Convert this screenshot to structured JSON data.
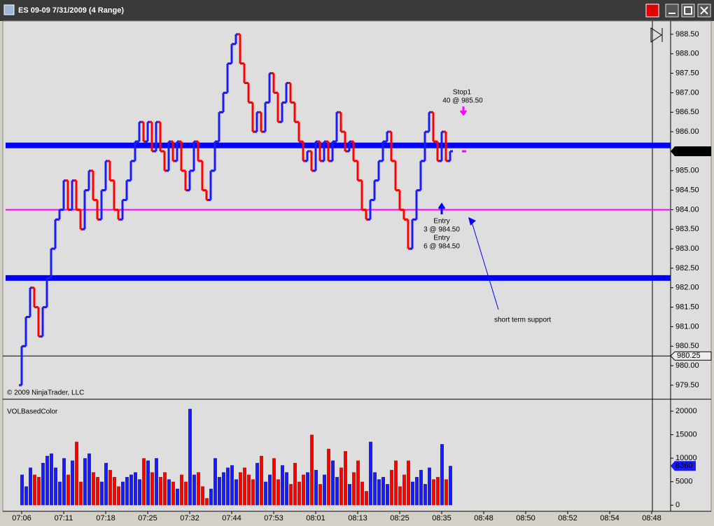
{
  "window": {
    "title": "ES 09-09  7/31/2009 (4 Range)"
  },
  "chart_data": {
    "type": "range-bar",
    "open": 979.5,
    "up_color": "#1a1aff",
    "down_color": "#ff0000",
    "values": [
      980.5,
      981.25,
      982,
      981.5,
      980.75,
      981.5,
      982.25,
      983,
      983.75,
      984,
      984.75,
      984,
      984.75,
      984,
      983.5,
      984.5,
      985,
      984.25,
      983.75,
      984.5,
      985.25,
      984.75,
      984,
      983.75,
      984.25,
      984.75,
      985.25,
      985.75,
      986.25,
      985.75,
      986.25,
      985.5,
      986.25,
      985.5,
      985,
      985.75,
      985.25,
      985.75,
      985,
      984.5,
      985,
      985.75,
      985.25,
      984.5,
      984.25,
      985,
      985.75,
      986.5,
      987,
      987.75,
      988.25,
      988.5,
      987.75,
      987.25,
      986.75,
      986,
      986.5,
      986,
      986.75,
      987.5,
      987,
      986.25,
      986.75,
      987.25,
      986.75,
      986.25,
      985.75,
      985.25,
      985.5,
      985,
      985.75,
      985.25,
      985.75,
      985.25,
      985.75,
      986.5,
      986,
      985.5,
      985.75,
      985.25,
      984.75,
      984,
      983.75,
      984.25,
      984.75,
      985.25,
      985.75,
      986,
      985.25,
      984.5,
      984,
      983.75,
      983,
      983.75,
      984.5,
      985.25,
      986,
      986.5,
      985.75,
      985.25,
      986,
      985.25,
      985.5
    ],
    "ylim": [
      979.14,
      988.84
    ],
    "yticks": [
      {
        "value": 979.5,
        "label": "979.50"
      },
      {
        "value": 980,
        "label": "980.00"
      },
      {
        "value": 980.5,
        "label": "980.50"
      },
      {
        "value": 981,
        "label": "981.00"
      },
      {
        "value": 981.5,
        "label": "981.50"
      },
      {
        "value": 982,
        "label": "982.00"
      },
      {
        "value": 982.5,
        "label": "982.50"
      },
      {
        "value": 983,
        "label": "983.00"
      },
      {
        "value": 983.5,
        "label": "983.50"
      },
      {
        "value": 984,
        "label": "984.00"
      },
      {
        "value": 984.5,
        "label": "984.50"
      },
      {
        "value": 985,
        "label": "985.00"
      },
      {
        "value": 985.5,
        "label": "985.50"
      },
      {
        "value": 986,
        "label": "986.00"
      },
      {
        "value": 986.5,
        "label": "986.50"
      },
      {
        "value": 987,
        "label": "987.00"
      },
      {
        "value": 987.5,
        "label": "987.50"
      },
      {
        "value": 988,
        "label": "988.00"
      },
      {
        "value": 988.5,
        "label": "988.50"
      }
    ],
    "time_labels": [
      "07:06",
      "07:11",
      "07:18",
      "07:25",
      "07:32",
      "07:44",
      "07:53",
      "08:01",
      "08:13",
      "08:25",
      "08:35",
      "08:48",
      "08:50",
      "08:52",
      "08:54",
      "08:48"
    ],
    "hlines": [
      {
        "value": 985.65,
        "color": "#0000ff"
      },
      {
        "value": 982.25,
        "color": "#0000ff"
      },
      {
        "value": 984,
        "color": "#ff00ff"
      }
    ],
    "price_tag": {
      "value": 985.5,
      "label": "985.50"
    },
    "cursor_line": {
      "value": 980.25,
      "label": "980.25"
    },
    "annotations": {
      "stop": "Stop1",
      "stop_order": "40 @ 985.50",
      "entry1": "Entry",
      "entry1_order": "3 @ 984.50",
      "entry2": "Entry",
      "entry2_order": "6 @ 984.50",
      "note": "short term support"
    },
    "copyright": "© 2009 NinjaTrader, LLC",
    "volume": {
      "title": "VOLBasedColor",
      "values": [
        6500,
        4000,
        8000,
        6500,
        6000,
        9000,
        10500,
        11000,
        8000,
        5000,
        10000,
        6500,
        9500,
        13500,
        5000,
        10000,
        11000,
        7000,
        6000,
        5000,
        9000,
        7500,
        6000,
        4000,
        5000,
        6000,
        6500,
        7000,
        5500,
        10000,
        9500,
        7000,
        10000,
        6000,
        7000,
        5500,
        5000,
        3500,
        6500,
        5000,
        20500,
        6500,
        7000,
        4000,
        1500,
        3500,
        10000,
        6000,
        7000,
        8000,
        8500,
        5500,
        7000,
        8000,
        6500,
        5500,
        9000,
        10500,
        5000,
        6500,
        10000,
        5500,
        8500,
        7000,
        4500,
        9000,
        5000,
        6500,
        7000,
        15000,
        7500,
        4500,
        6500,
        12000,
        9500,
        6000,
        8000,
        11500,
        4500,
        7000,
        9500,
        5000,
        3000,
        13500,
        7000,
        5500,
        6000,
        4500,
        7500,
        9500,
        4000,
        6500,
        9500,
        5000,
        6000,
        7500,
        4500,
        8000,
        5500,
        6000,
        13000,
        5500,
        8360
      ],
      "ylim": [
        -1300,
        22250
      ],
      "yticks": [
        0,
        5000,
        10000,
        15000,
        20000
      ]
    }
  }
}
